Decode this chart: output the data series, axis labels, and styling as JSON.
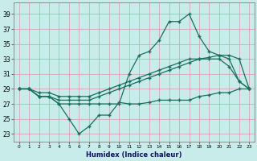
{
  "xlabel": "Humidex (Indice chaleur)",
  "bg_color": "#c8ecea",
  "grid_color": "#d4a8b0",
  "line_color": "#1a6e60",
  "x_ticks": [
    0,
    1,
    2,
    3,
    4,
    5,
    6,
    7,
    8,
    9,
    10,
    11,
    12,
    13,
    14,
    15,
    16,
    17,
    18,
    19,
    20,
    21,
    22,
    23
  ],
  "y_ticks": [
    23,
    25,
    27,
    29,
    31,
    33,
    35,
    37,
    39
  ],
  "ylim": [
    22.0,
    40.5
  ],
  "xlim": [
    -0.5,
    23.5
  ],
  "line_zigzag_x": [
    0,
    1,
    2,
    3,
    4,
    5,
    6,
    7,
    8,
    9,
    10,
    11,
    12,
    13,
    14,
    15,
    16,
    17,
    18,
    19,
    20,
    21,
    22,
    23
  ],
  "line_zigzag_y": [
    29,
    29,
    28,
    28,
    27,
    25,
    23,
    24,
    25.5,
    25.5,
    27.2,
    27,
    27,
    27.2,
    27.5,
    27.5,
    27.5,
    27.5,
    28,
    28.2,
    28.5,
    28.5,
    29,
    29
  ],
  "line_diag1_x": [
    0,
    1,
    2,
    3,
    4,
    5,
    6,
    7,
    8,
    9,
    10,
    11,
    12,
    13,
    14,
    15,
    16,
    17,
    18,
    19,
    20,
    21,
    22,
    23
  ],
  "line_diag1_y": [
    29,
    29,
    28.5,
    28.5,
    28,
    28,
    28,
    28,
    28.5,
    29,
    29.5,
    30,
    30.5,
    31,
    31.5,
    32,
    32.5,
    33,
    33,
    33.2,
    33.5,
    33.5,
    33,
    29
  ],
  "line_diag2_x": [
    0,
    1,
    2,
    3,
    4,
    5,
    6,
    7,
    8,
    9,
    10,
    11,
    12,
    13,
    14,
    15,
    16,
    17,
    18,
    19,
    20,
    21,
    22,
    23
  ],
  "line_diag2_y": [
    29,
    29,
    28,
    28,
    27.5,
    27.5,
    27.5,
    27.5,
    28,
    28.5,
    29,
    29.5,
    30,
    30.5,
    31,
    31.5,
    32,
    32.5,
    33,
    33,
    33,
    32,
    30,
    29
  ],
  "line_spike_x": [
    0,
    1,
    2,
    3,
    4,
    5,
    6,
    7,
    8,
    9,
    10,
    11,
    12,
    13,
    14,
    15,
    16,
    17,
    18,
    19,
    20,
    21,
    22,
    23
  ],
  "line_spike_y": [
    29,
    29,
    28,
    28,
    27,
    27,
    27,
    27,
    27,
    27,
    27,
    31,
    33.5,
    34,
    35.5,
    38,
    38,
    39,
    36,
    34,
    33.5,
    33,
    30,
    29
  ]
}
